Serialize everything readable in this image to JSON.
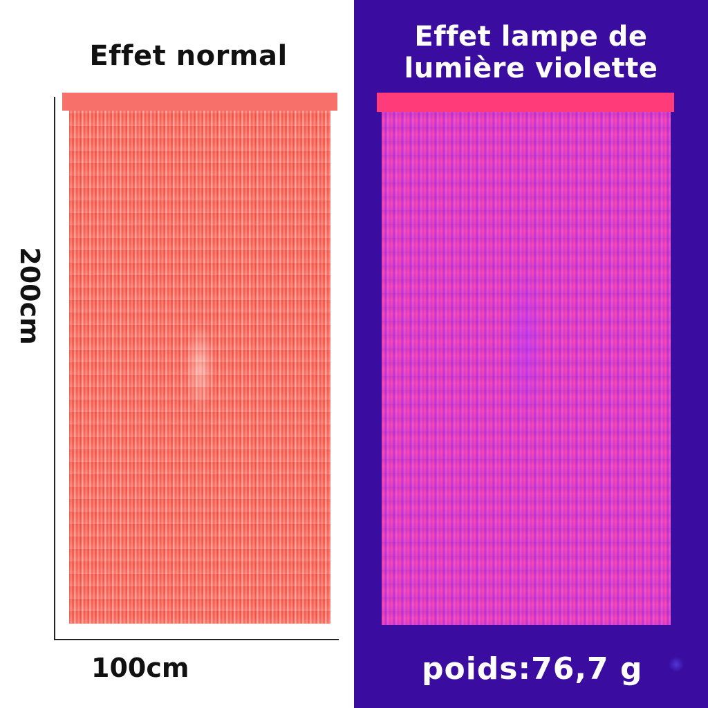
{
  "left_panel": {
    "title": "Effet normal",
    "height_label": "200cm",
    "width_label": "100cm"
  },
  "right_panel": {
    "title_line1": "Effet lampe de",
    "title_line2": "lumière violette",
    "weight_label": "poids:76,7 g"
  },
  "colors": {
    "left_background": "#ffffff",
    "right_background": "#3a0da0",
    "normal_curtain": "#f45c50",
    "uv_curtain": "#e23cc8"
  },
  "icons": {
    "corner_mark": "sparkle-icon"
  }
}
